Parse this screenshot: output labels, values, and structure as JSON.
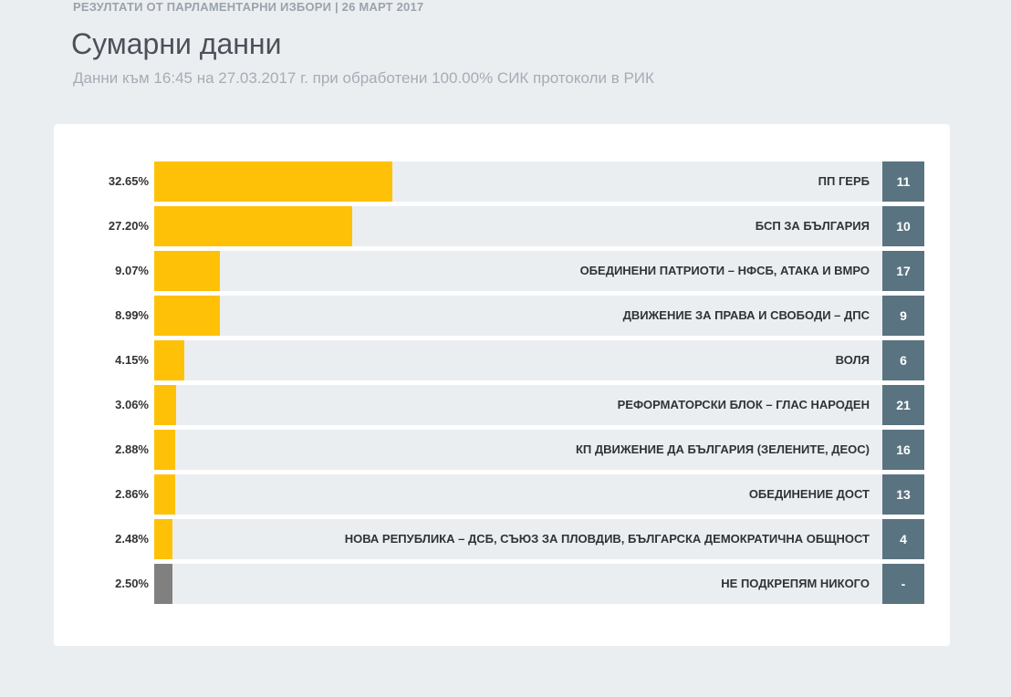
{
  "header": {
    "top_label": "РЕЗУЛТАТИ ОТ ПАРЛАМЕНТАРНИ ИЗБОРИ | 26 МАРТ 2017",
    "title": "Сумарни данни",
    "subtitle": "Данни към 16:45 на 27.03.2017 г. при обработени 100.00% СИК протоколи в РИК"
  },
  "colors": {
    "party_fill": "#ffc107",
    "none_fill": "#808080",
    "seat_box": "#5a7381"
  },
  "chart_data": {
    "type": "bar",
    "orientation": "horizontal",
    "xlim": [
      0,
      100
    ],
    "rows": [
      {
        "percent_label": "32.65%",
        "value": 32.65,
        "party": "ПП ГЕРБ",
        "number": "11",
        "kind": "party"
      },
      {
        "percent_label": "27.20%",
        "value": 27.2,
        "party": "БСП ЗА БЪЛГАРИЯ",
        "number": "10",
        "kind": "party"
      },
      {
        "percent_label": "9.07%",
        "value": 9.07,
        "party": "ОБЕДИНЕНИ ПАТРИОТИ – НФСБ, АТАКА И ВМРО",
        "number": "17",
        "kind": "party"
      },
      {
        "percent_label": "8.99%",
        "value": 8.99,
        "party": "ДВИЖЕНИЕ ЗА ПРАВА И СВОБОДИ – ДПС",
        "number": "9",
        "kind": "party"
      },
      {
        "percent_label": "4.15%",
        "value": 4.15,
        "party": "ВОЛЯ",
        "number": "6",
        "kind": "party"
      },
      {
        "percent_label": "3.06%",
        "value": 3.06,
        "party": "РЕФОРМАТОРСКИ БЛОК – ГЛАС НАРОДЕН",
        "number": "21",
        "kind": "party"
      },
      {
        "percent_label": "2.88%",
        "value": 2.88,
        "party": "КП ДВИЖЕНИЕ ДА БЪЛГАРИЯ (ЗЕЛЕНИТЕ, ДЕОС)",
        "number": "16",
        "kind": "party"
      },
      {
        "percent_label": "2.86%",
        "value": 2.86,
        "party": "ОБЕДИНЕНИЕ ДОСТ",
        "number": "13",
        "kind": "party"
      },
      {
        "percent_label": "2.48%",
        "value": 2.48,
        "party": "НОВА РЕПУБЛИКА – ДСБ, СЪЮЗ ЗА ПЛОВДИВ, БЪЛГАРСКА ДЕМОКРАТИЧНА ОБЩНОСТ",
        "number": "4",
        "kind": "party"
      },
      {
        "percent_label": "2.50%",
        "value": 2.5,
        "party": "НЕ ПОДКРЕПЯМ НИКОГО",
        "number": "-",
        "kind": "none"
      }
    ]
  }
}
